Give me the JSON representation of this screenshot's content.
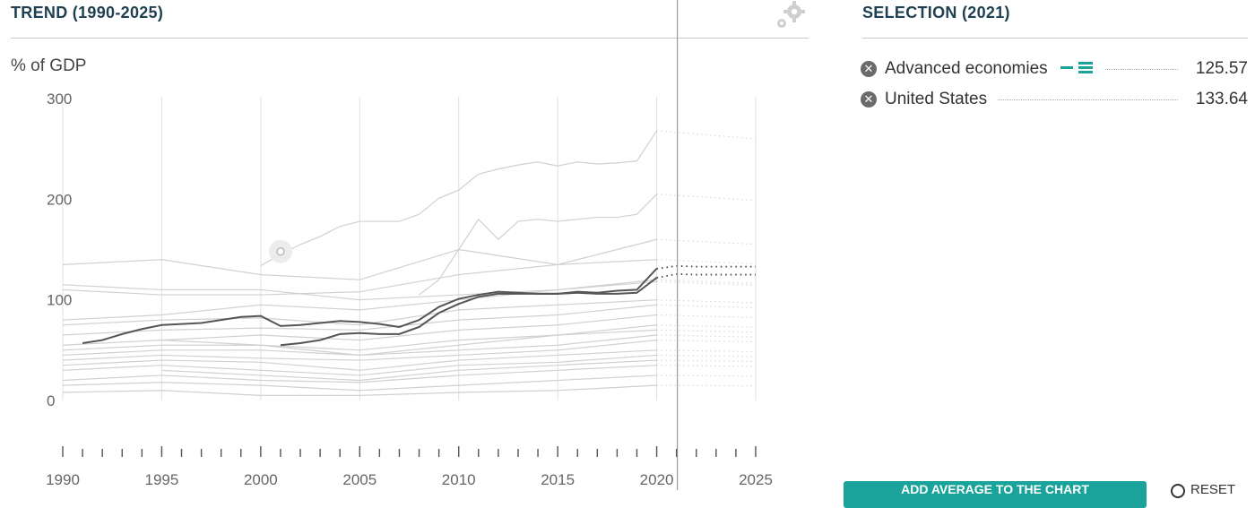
{
  "left_panel": {
    "title": "TREND (1990-2025)",
    "unit_label": "% of GDP",
    "settings_icon": "gear-icon"
  },
  "right_panel": {
    "title": "SELECTION (2021)",
    "items": [
      {
        "name": "Advanced economies",
        "value": "125.57",
        "remove_icon": "close-circle-icon",
        "legend_icon": "legend-line-icon"
      },
      {
        "name": "United States",
        "value": "133.64",
        "remove_icon": "close-circle-icon"
      }
    ],
    "add_button_label": "ADD AVERAGE TO THE CHART",
    "reset_label": "RESET"
  },
  "colors": {
    "title": "#1f3f52",
    "accent": "#1aa39b",
    "highlight_line": "#555555",
    "background_line": "#d0d0d0"
  },
  "chart_data": {
    "type": "line",
    "title": "TREND (1990-2025)",
    "ylabel": "% of GDP",
    "xlabel": "",
    "xlim": [
      1990,
      2025
    ],
    "ylim": [
      0,
      300
    ],
    "y_ticks": [
      0,
      100,
      200,
      300
    ],
    "x_ticks": [
      1990,
      1995,
      2000,
      2005,
      2010,
      2015,
      2020,
      2025
    ],
    "projection_start": 2021,
    "highlighted_series": [
      {
        "name": "Advanced economies",
        "x": [
          1991,
          1992,
          1993,
          1994,
          1995,
          1996,
          1997,
          1998,
          1999,
          2000,
          2001,
          2002,
          2003,
          2004,
          2005,
          2006,
          2007,
          2008,
          2009,
          2010,
          2011,
          2012,
          2013,
          2014,
          2015,
          2016,
          2017,
          2018,
          2019,
          2020,
          2021,
          2022,
          2023,
          2024,
          2025
        ],
        "values": [
          57,
          60,
          66,
          71,
          75,
          76,
          77,
          80,
          83,
          84,
          74,
          75,
          77,
          79,
          78,
          76,
          73,
          80,
          93,
          101,
          105,
          108,
          107,
          106,
          106,
          107,
          106,
          106,
          107,
          122,
          125.57,
          125,
          125,
          125,
          125
        ]
      },
      {
        "name": "United States",
        "x": [
          2001,
          2002,
          2003,
          2004,
          2005,
          2006,
          2007,
          2008,
          2009,
          2010,
          2011,
          2012,
          2013,
          2014,
          2015,
          2016,
          2017,
          2018,
          2019,
          2020,
          2021,
          2022,
          2023,
          2024,
          2025
        ],
        "values": [
          55,
          57,
          60,
          66,
          67,
          66,
          66,
          73,
          87,
          96,
          103,
          106,
          106,
          106,
          106,
          108,
          107,
          109,
          110,
          131,
          133.64,
          133,
          133,
          133,
          133
        ]
      }
    ],
    "background_series": [
      {
        "x": [
          1990,
          1995,
          2000,
          2005,
          2010,
          2015,
          2020
        ],
        "values": [
          135,
          140,
          125,
          120,
          150,
          135,
          140
        ]
      },
      {
        "x": [
          2000,
          2001,
          2002,
          2003,
          2004,
          2005,
          2007,
          2008,
          2009,
          2010,
          2011,
          2012,
          2013,
          2014,
          2015,
          2016,
          2017,
          2018,
          2019,
          2020
        ],
        "values": [
          134,
          145,
          155,
          163,
          173,
          178,
          178,
          185,
          201,
          209,
          225,
          230,
          234,
          237,
          233,
          237,
          235,
          236,
          238,
          268
        ]
      },
      {
        "x": [
          2008,
          2009,
          2010,
          2011,
          2012,
          2013,
          2014,
          2015,
          2016,
          2017,
          2018,
          2019,
          2020
        ],
        "values": [
          105,
          120,
          150,
          180,
          160,
          178,
          180,
          178,
          180,
          182,
          182,
          185,
          205
        ]
      },
      {
        "x": [
          1990,
          1995,
          2000,
          2005,
          2010,
          2015,
          2020
        ],
        "values": [
          110,
          105,
          105,
          108,
          125,
          135,
          160
        ]
      },
      {
        "x": [
          1990,
          1995,
          2000,
          2005,
          2010,
          2015,
          2020
        ],
        "values": [
          115,
          110,
          110,
          100,
          105,
          110,
          120
        ]
      },
      {
        "x": [
          1990,
          1995,
          2000,
          2005,
          2010,
          2015,
          2020
        ],
        "values": [
          80,
          85,
          95,
          90,
          100,
          110,
          118
        ]
      },
      {
        "x": [
          1990,
          1995,
          2000,
          2005,
          2010,
          2015,
          2020
        ],
        "values": [
          75,
          80,
          82,
          75,
          90,
          95,
          100
        ]
      },
      {
        "x": [
          1990,
          1995,
          2000,
          2005,
          2010,
          2015,
          2020
        ],
        "values": [
          65,
          70,
          72,
          70,
          80,
          85,
          95
        ]
      },
      {
        "x": [
          1990,
          1995,
          2000,
          2005,
          2010,
          2015,
          2020
        ],
        "values": [
          55,
          60,
          65,
          60,
          70,
          75,
          85
        ]
      },
      {
        "x": [
          1990,
          1995,
          2000,
          2005,
          2010,
          2015,
          2020
        ],
        "values": [
          50,
          55,
          55,
          50,
          60,
          65,
          75
        ]
      },
      {
        "x": [
          1990,
          1995,
          2000,
          2005,
          2010,
          2015,
          2020
        ],
        "values": [
          45,
          50,
          50,
          45,
          50,
          55,
          65
        ]
      },
      {
        "x": [
          1990,
          1995,
          2000,
          2005,
          2010,
          2015,
          2020
        ],
        "values": [
          40,
          45,
          42,
          40,
          45,
          50,
          60
        ]
      },
      {
        "x": [
          1990,
          1995,
          2000,
          2005,
          2010,
          2015,
          2020
        ],
        "values": [
          35,
          40,
          38,
          30,
          40,
          45,
          50
        ]
      },
      {
        "x": [
          1990,
          1995,
          2000,
          2005,
          2010,
          2015,
          2020
        ],
        "values": [
          30,
          35,
          30,
          25,
          35,
          38,
          45
        ]
      },
      {
        "x": [
          1990,
          1995,
          2000,
          2005,
          2010,
          2015,
          2020
        ],
        "values": [
          20,
          25,
          20,
          18,
          25,
          30,
          35
        ]
      },
      {
        "x": [
          1990,
          1995,
          2000,
          2005,
          2010,
          2015,
          2020
        ],
        "values": [
          15,
          18,
          15,
          10,
          15,
          20,
          25
        ]
      },
      {
        "x": [
          1995,
          2000,
          2005,
          2010,
          2015,
          2020
        ],
        "values": [
          30,
          25,
          20,
          30,
          35,
          40
        ]
      },
      {
        "x": [
          1995,
          2000,
          2005,
          2010,
          2015,
          2020
        ],
        "values": [
          60,
          55,
          45,
          55,
          65,
          70
        ]
      },
      {
        "x": [
          1990,
          1995,
          2000,
          2005,
          2010,
          2015,
          2020
        ],
        "values": [
          8,
          10,
          5,
          5,
          8,
          10,
          15
        ]
      }
    ],
    "highlight_marker": {
      "x": 2001,
      "y": 148
    }
  }
}
